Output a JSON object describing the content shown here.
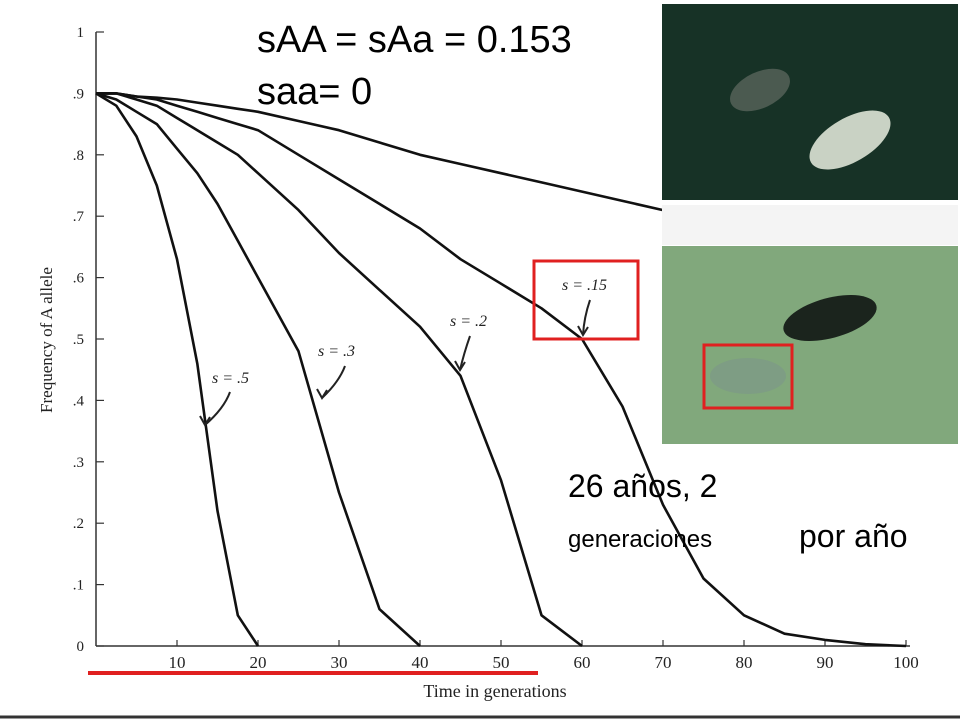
{
  "chart_data": {
    "type": "line",
    "title": "sAA = sAa = 0.153",
    "subtitle": "saa= 0",
    "annotations": [
      "26 años, 2",
      "generaciones",
      "por año"
    ],
    "x_label": "Time in generations",
    "y_label": "Frequency of A allele",
    "x": [
      0,
      2.5,
      5,
      7.5,
      10,
      12.5,
      15,
      17.5,
      20,
      25,
      30,
      35,
      40,
      45,
      50,
      55,
      60,
      65,
      70,
      75,
      80,
      85,
      90,
      95,
      100
    ],
    "series": [
      {
        "name": "s = .5",
        "color": "#111111",
        "values": [
          0.9,
          0.88,
          0.83,
          0.75,
          0.63,
          0.46,
          0.22,
          0.05,
          0,
          null,
          null,
          null,
          null,
          null,
          null,
          null,
          null,
          null,
          null,
          null,
          null,
          null,
          null,
          null,
          null
        ]
      },
      {
        "name": "s = .3",
        "color": "#111111",
        "values": [
          0.9,
          0.89,
          0.87,
          0.85,
          0.81,
          0.77,
          0.72,
          0.66,
          0.6,
          0.48,
          0.25,
          0.06,
          0,
          null,
          null,
          null,
          null,
          null,
          null,
          null,
          null,
          null,
          null,
          null,
          null
        ]
      },
      {
        "name": "s = .2",
        "color": "#111111",
        "values": [
          0.9,
          0.9,
          0.89,
          0.88,
          0.86,
          0.84,
          0.82,
          0.8,
          0.77,
          0.71,
          0.64,
          0.58,
          0.52,
          0.44,
          0.27,
          0.05,
          0,
          null,
          null,
          null,
          null,
          null,
          null,
          null,
          null
        ]
      },
      {
        "name": "s = .15",
        "color": "#111111",
        "values": [
          0.9,
          0.9,
          0.895,
          0.89,
          0.88,
          0.87,
          0.86,
          0.85,
          0.84,
          0.8,
          0.76,
          0.72,
          0.68,
          0.63,
          0.59,
          0.55,
          0.5,
          0.39,
          0.23,
          0.11,
          0.05,
          0.02,
          0.01,
          0.003,
          0
        ]
      },
      {
        "color": "#111111",
        "values": [
          0.9,
          0.9,
          0.895,
          0.893,
          0.89,
          0.885,
          0.88,
          0.875,
          0.87,
          0.855,
          0.84,
          0.82,
          0.8,
          0.785,
          0.77,
          0.755,
          0.74,
          0.725,
          0.71,
          null,
          null,
          null,
          null,
          null,
          null
        ]
      }
    ],
    "xlim": [
      0,
      100
    ],
    "xticks": [
      10,
      20,
      30,
      40,
      50,
      60,
      70,
      80,
      90,
      100
    ],
    "ylim": [
      0,
      1
    ],
    "yticks": [
      0,
      {
        "value": 0.1,
        "label": ".1"
      },
      {
        "value": 0.2,
        "label": ".2"
      },
      {
        "value": 0.3,
        "label": ".3"
      },
      {
        "value": 0.4,
        "label": ".4"
      },
      {
        "value": 0.5,
        "label": ".5"
      },
      {
        "value": 0.6,
        "label": ".6"
      },
      {
        "value": 0.7,
        "label": ".7"
      },
      {
        "value": 0.8,
        "label": ".8"
      },
      {
        "value": 0.9,
        "label": ".9"
      },
      1
    ]
  }
}
